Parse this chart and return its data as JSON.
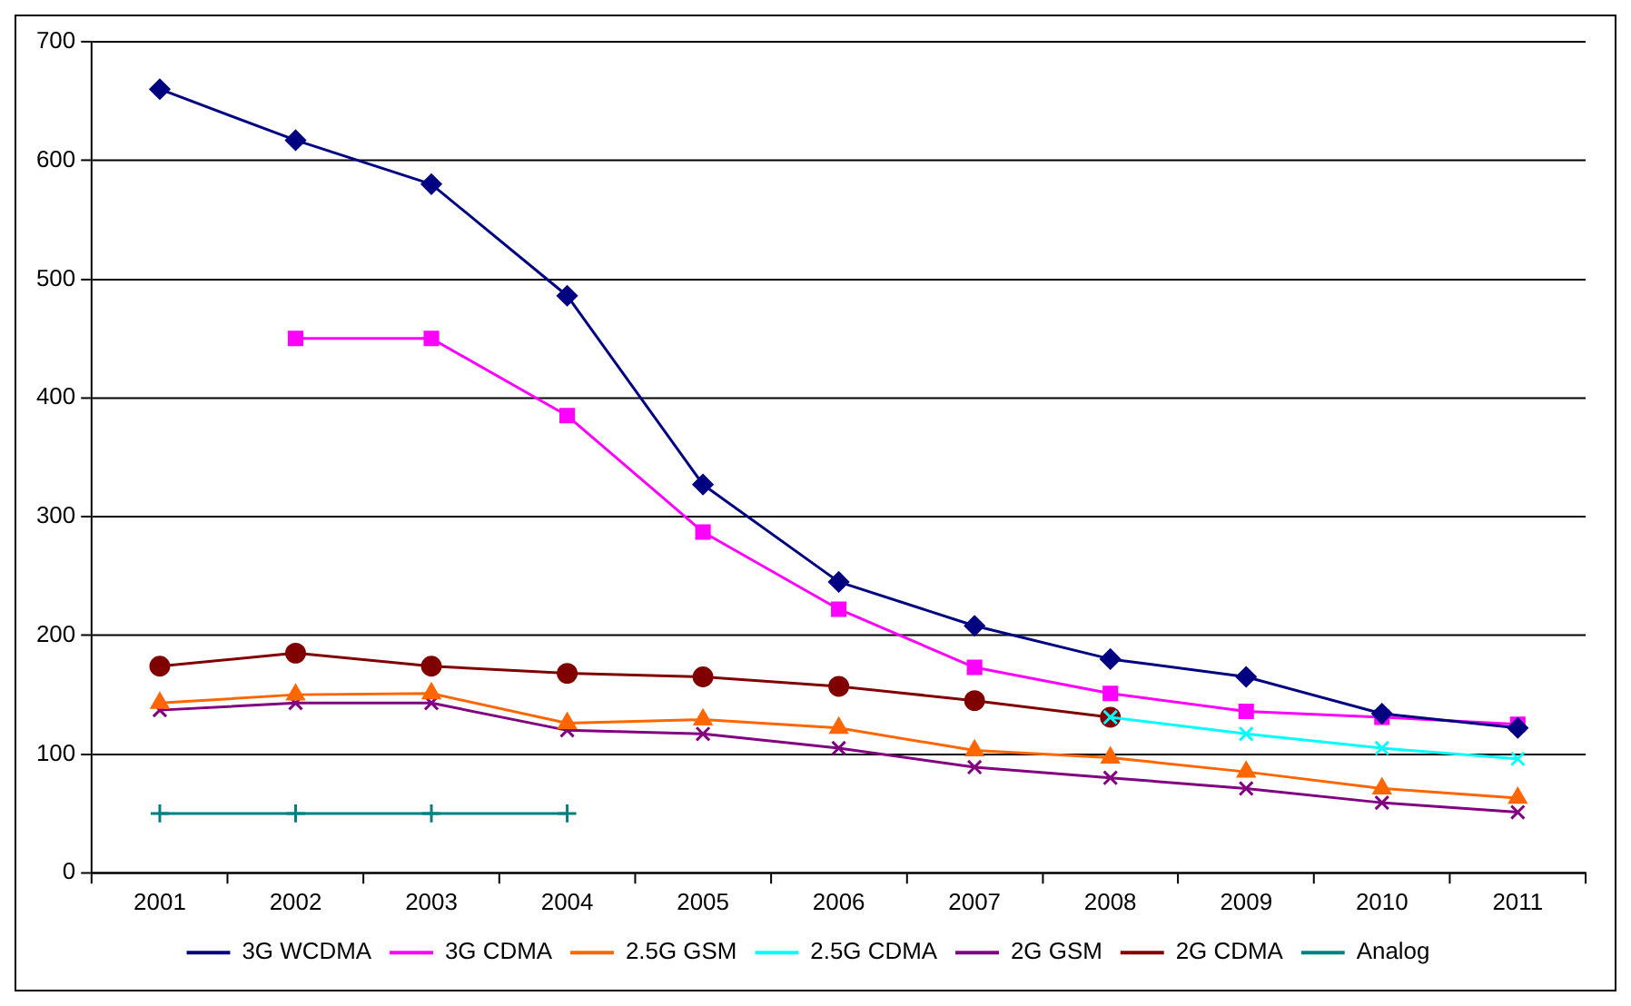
{
  "chart_data": {
    "type": "line",
    "categories": [
      "2001",
      "2002",
      "2003",
      "2004",
      "2005",
      "2006",
      "2007",
      "2008",
      "2009",
      "2010",
      "2011"
    ],
    "series": [
      {
        "name": "3G WCDMA",
        "color": "#000080",
        "marker": "diamond",
        "values": [
          660,
          617,
          580,
          486,
          327,
          245,
          208,
          180,
          165,
          134,
          122
        ]
      },
      {
        "name": "3G CDMA",
        "color": "#ff00ff",
        "marker": "square",
        "values": [
          null,
          450,
          450,
          385,
          287,
          222,
          173,
          151,
          136,
          131,
          125
        ]
      },
      {
        "name": "2.5G GSM",
        "color": "#ff6600",
        "marker": "triangle",
        "values": [
          143,
          150,
          151,
          126,
          129,
          122,
          103,
          97,
          85,
          71,
          63
        ]
      },
      {
        "name": "2.5G CDMA",
        "color": "#00ffff",
        "marker": "cross",
        "values": [
          null,
          null,
          null,
          null,
          null,
          null,
          null,
          131,
          117,
          105,
          96
        ]
      },
      {
        "name": "2G GSM",
        "color": "#800080",
        "marker": "cross",
        "values": [
          137,
          143,
          143,
          120,
          117,
          105,
          89,
          80,
          71,
          59,
          51
        ]
      },
      {
        "name": "2G CDMA",
        "color": "#800000",
        "marker": "circle",
        "values": [
          174,
          185,
          174,
          168,
          165,
          157,
          145,
          131,
          null,
          null,
          null
        ]
      },
      {
        "name": "Analog",
        "color": "#008080",
        "marker": "plus",
        "values": [
          50,
          50,
          50,
          50,
          null,
          null,
          null,
          null,
          null,
          null,
          null
        ]
      }
    ],
    "ylim": [
      0,
      700
    ],
    "yticks": [
      0,
      100,
      200,
      300,
      400,
      500,
      600,
      700
    ],
    "grid": "y",
    "legend": "bottom",
    "line_style": "solid"
  }
}
